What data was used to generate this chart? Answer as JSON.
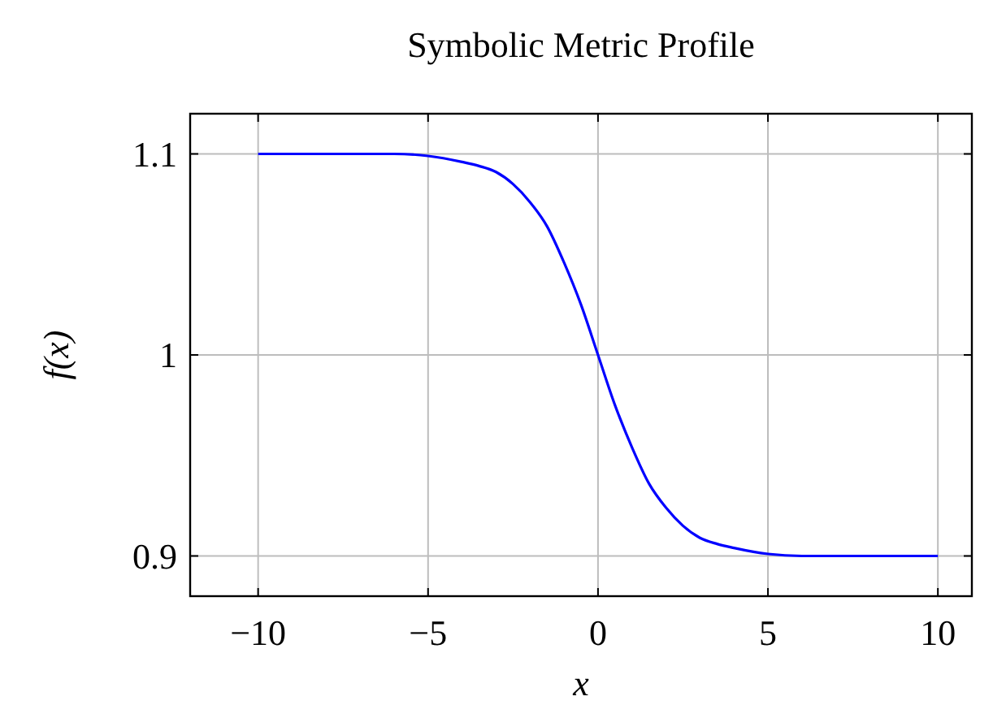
{
  "chart_data": {
    "type": "line",
    "title": "Symbolic Metric Profile",
    "xlabel": "x",
    "ylabel": "f(x)",
    "x": [
      -10,
      -8,
      -6,
      -5,
      -4,
      -3.5,
      -3,
      -2.5,
      -2,
      -1.5,
      -1,
      -0.5,
      0,
      0.5,
      1,
      1.5,
      2,
      2.5,
      3,
      3.5,
      4,
      5,
      6,
      8,
      10
    ],
    "series": [
      {
        "color": "#0000ff",
        "values": [
          1.1,
          1.1,
          1.1,
          1.099,
          1.096,
          1.094,
          1.091,
          1.085,
          1.076,
          1.064,
          1.046,
          1.025,
          1.0,
          0.975,
          0.954,
          0.936,
          0.924,
          0.915,
          0.909,
          0.906,
          0.904,
          0.901,
          0.9,
          0.9,
          0.9
        ]
      }
    ],
    "xlim": [
      -12,
      11
    ],
    "ylim": [
      0.88,
      1.12
    ],
    "xticks": [
      {
        "value": -10,
        "label": "−10"
      },
      {
        "value": -5,
        "label": "−5"
      },
      0,
      5,
      10
    ],
    "yticks": [
      0.9,
      1,
      1.1
    ],
    "grid": true,
    "marker": "none",
    "line_style": "solid"
  }
}
